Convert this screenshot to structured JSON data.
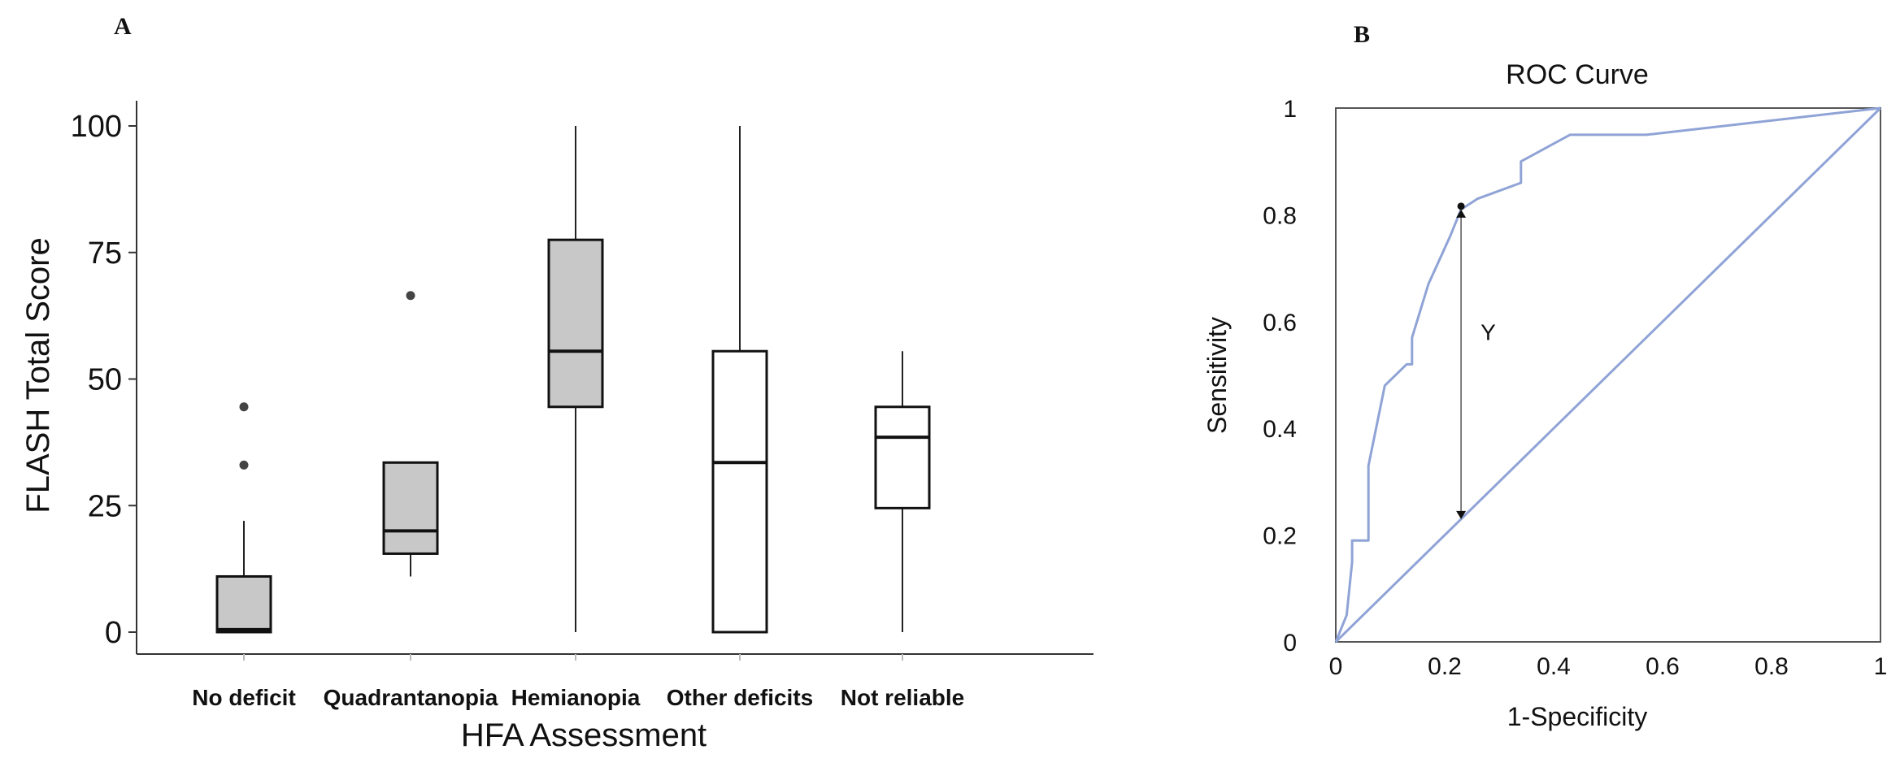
{
  "chart_data": [
    {
      "panel": "A",
      "type": "box",
      "xlabel": "HFA Assessment",
      "ylabel": "FLASH Total Score",
      "ylim": [
        0,
        100
      ],
      "yticks": [
        0,
        25,
        50,
        75,
        100
      ],
      "grid": false,
      "categories": [
        "No deficit",
        "Quadrantanopia",
        "Hemianopia",
        "Other deficits",
        "Not reliable"
      ],
      "boxes": [
        {
          "category": "No deficit",
          "min": 0,
          "q1": 0,
          "median": 0.5,
          "q3": 11,
          "max": 22,
          "outliers": [
            33,
            44.5
          ],
          "fill": "#c8c8c8"
        },
        {
          "category": "Quadrantanopia",
          "min": 11,
          "q1": 15.5,
          "median": 20,
          "q3": 33.5,
          "max": 33.5,
          "outliers": [
            66.5
          ],
          "fill": "#c8c8c8"
        },
        {
          "category": "Hemianopia",
          "min": 0,
          "q1": 44.5,
          "median": 55.5,
          "q3": 77.5,
          "max": 100,
          "outliers": [],
          "fill": "#c8c8c8"
        },
        {
          "category": "Other deficits",
          "min": 0,
          "q1": 0,
          "median": 33.5,
          "q3": 55.5,
          "max": 100,
          "outliers": [],
          "fill": "#ffffff"
        },
        {
          "category": "Not reliable",
          "min": 0,
          "q1": 24.5,
          "median": 38.5,
          "q3": 44.5,
          "max": 55.5,
          "outliers": [],
          "fill": "#ffffff"
        }
      ]
    },
    {
      "panel": "B",
      "type": "line",
      "title": "ROC Curve",
      "xlabel": "1-Specificity",
      "ylabel": "Sensitivity",
      "xlim": [
        0,
        1
      ],
      "ylim": [
        0,
        1
      ],
      "xticks": [
        0,
        0.2,
        0.4,
        0.6,
        0.8,
        1
      ],
      "xtick_labels": [
        "0",
        "0.2",
        "0.4",
        "0.6",
        "0.8",
        "1"
      ],
      "yticks": [
        0,
        0.2,
        0.4,
        0.6,
        0.8,
        1
      ],
      "ytick_labels": [
        "0",
        "0.2",
        "0.4",
        "0.6",
        "0.8",
        "1"
      ],
      "grid": false,
      "line_color": "#8fa3d6",
      "series": [
        {
          "x": [
            0,
            0.02,
            0.03,
            0.03,
            0.06,
            0.06,
            0.07,
            0.09,
            0.13,
            0.14,
            0.14,
            0.17,
            0.21,
            0.23,
            0.26,
            0.34,
            0.34,
            0.43,
            0.57,
            1.0
          ],
          "y": [
            0,
            0.05,
            0.15,
            0.19,
            0.19,
            0.33,
            0.38,
            0.48,
            0.52,
            0.52,
            0.57,
            0.67,
            0.76,
            0.81,
            0.83,
            0.86,
            0.9,
            0.95,
            0.95,
            1.0
          ]
        },
        {
          "x": [
            0,
            1
          ],
          "y": [
            0,
            1
          ]
        }
      ],
      "annotation": {
        "label": "Y",
        "x": 0.23,
        "y_from": 0.81,
        "y_to": 0.23
      }
    }
  ],
  "labels": {
    "panel_a": "A",
    "panel_b": "B"
  }
}
